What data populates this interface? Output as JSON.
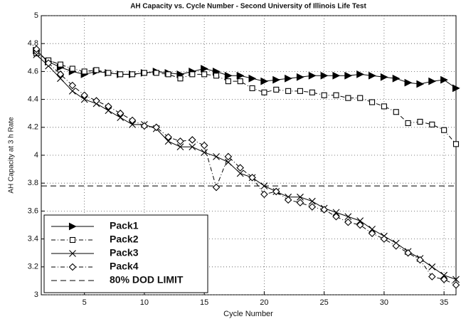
{
  "chart_data": {
    "type": "line",
    "title": "AH Capacity vs. Cycle Number - Second University of Illinois Life Test",
    "x_label": "Cycle Number",
    "y_label": "AH Capacity at 3 h Rate",
    "x": [
      1,
      2,
      3,
      4,
      5,
      6,
      7,
      8,
      9,
      10,
      11,
      12,
      13,
      14,
      15,
      16,
      17,
      18,
      19,
      20,
      21,
      22,
      23,
      24,
      25,
      26,
      27,
      28,
      29,
      30,
      31,
      32,
      33,
      34,
      35,
      36
    ],
    "series": [
      {
        "name": "Pack1",
        "color": "#000000",
        "marker": "triangle",
        "dash": "solid",
        "values": [
          4.75,
          4.67,
          4.63,
          4.6,
          4.58,
          4.6,
          4.59,
          4.58,
          4.58,
          4.59,
          4.6,
          4.59,
          4.58,
          4.6,
          4.62,
          4.6,
          4.57,
          4.57,
          4.55,
          4.53,
          4.54,
          4.55,
          4.56,
          4.57,
          4.57,
          4.57,
          4.57,
          4.58,
          4.57,
          4.56,
          4.55,
          4.52,
          4.51,
          4.53,
          4.54,
          4.48
        ]
      },
      {
        "name": "Pack2",
        "color": "#000000",
        "marker": "square",
        "dash": "dashdot",
        "values": [
          4.73,
          4.68,
          4.65,
          4.62,
          4.6,
          4.61,
          4.59,
          4.58,
          4.58,
          4.59,
          4.59,
          4.58,
          4.55,
          4.58,
          4.58,
          4.57,
          4.53,
          4.53,
          4.48,
          4.45,
          4.47,
          4.46,
          4.46,
          4.45,
          4.43,
          4.43,
          4.41,
          4.41,
          4.38,
          4.35,
          4.31,
          4.23,
          4.24,
          4.22,
          4.18,
          4.08
        ]
      },
      {
        "name": "Pack3",
        "color": "#000000",
        "marker": "x",
        "dash": "solid",
        "values": [
          4.72,
          4.64,
          4.55,
          4.46,
          4.4,
          4.37,
          4.32,
          4.27,
          4.22,
          4.22,
          4.19,
          4.1,
          4.06,
          4.06,
          4.02,
          3.99,
          3.95,
          3.87,
          3.84,
          3.78,
          3.74,
          3.7,
          3.7,
          3.67,
          3.62,
          3.59,
          3.56,
          3.53,
          3.47,
          3.42,
          3.37,
          3.31,
          3.26,
          3.2,
          3.14,
          3.11
        ]
      },
      {
        "name": "Pack4",
        "color": "#000000",
        "marker": "diamond",
        "dash": "dashdot",
        "values": [
          4.76,
          4.66,
          4.58,
          4.5,
          4.43,
          4.39,
          4.35,
          4.3,
          4.25,
          4.21,
          4.2,
          4.13,
          4.1,
          4.11,
          4.07,
          3.77,
          3.99,
          3.91,
          3.84,
          3.72,
          3.74,
          3.68,
          3.66,
          3.63,
          3.61,
          3.56,
          3.52,
          3.5,
          3.44,
          3.4,
          3.35,
          3.3,
          3.25,
          3.13,
          3.11,
          3.07
        ]
      }
    ],
    "limit": {
      "name": "80% DOD LIMIT",
      "value": 3.78
    },
    "xlim": [
      1.4,
      36
    ],
    "ylim": [
      3,
      5
    ],
    "xticks": [
      5,
      10,
      15,
      20,
      25,
      30,
      35
    ],
    "yticks": [
      3,
      3.2,
      3.4,
      3.6,
      3.8,
      4,
      4.2,
      4.4,
      4.6,
      4.8,
      5
    ],
    "grid": true,
    "legend": "lower left"
  }
}
